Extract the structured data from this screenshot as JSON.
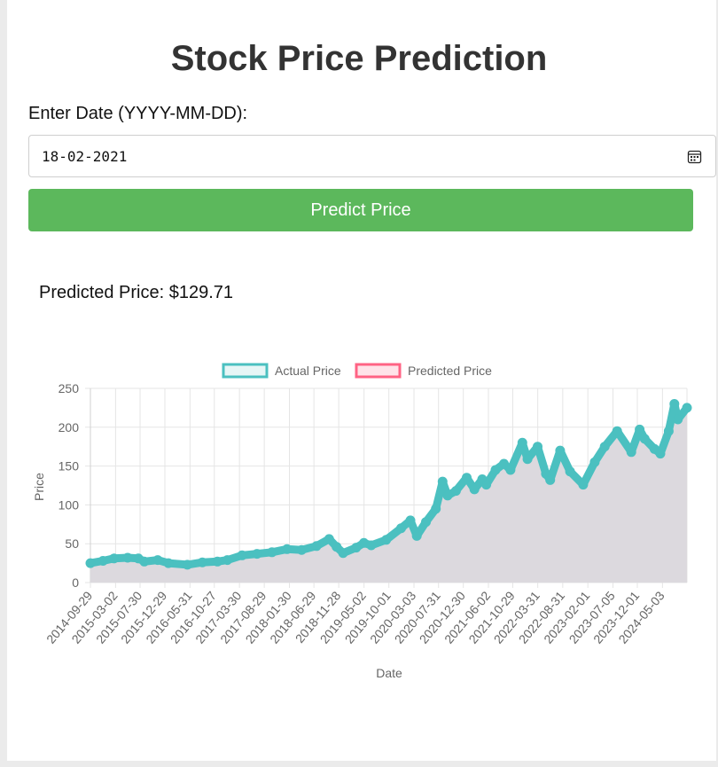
{
  "page": {
    "title": "Stock Price Prediction",
    "date_label": "Enter Date (YYYY-MM-DD):",
    "date_value": "18-02-2021",
    "button_label": "Predict Price",
    "result_text": "Predicted Price: $129.71"
  },
  "colors": {
    "actual": "#4bc0c0",
    "predicted": "#ff6384",
    "fill": "#dcd9de",
    "button": "#5cb85c"
  },
  "icons": {
    "date_picker": "calendar-icon"
  },
  "chart_data": {
    "type": "line",
    "xlabel": "Date",
    "ylabel": "Price",
    "ylim": [
      0,
      250
    ],
    "yticks": [
      0,
      50,
      100,
      150,
      200,
      250
    ],
    "x_tick_labels": [
      "2014-09-29",
      "2015-03-02",
      "2015-07-30",
      "2015-12-29",
      "2016-05-31",
      "2016-10-27",
      "2017-03-30",
      "2017-08-29",
      "2018-01-30",
      "2018-06-29",
      "2018-11-28",
      "2019-05-02",
      "2019-10-01",
      "2020-03-03",
      "2020-07-31",
      "2020-12-30",
      "2021-06-02",
      "2021-10-29",
      "2022-03-31",
      "2022-08-31",
      "2023-02-01",
      "2023-07-05",
      "2023-12-01",
      "2024-05-03"
    ],
    "x_range": [
      "2014-09-29",
      "2024-09-30"
    ],
    "grid": true,
    "legend_position": "top",
    "series": [
      {
        "name": "Actual Price",
        "color": "#4bc0c0",
        "points": [
          [
            "2014-09-29",
            25
          ],
          [
            "2014-12-15",
            28
          ],
          [
            "2015-02-20",
            31
          ],
          [
            "2015-05-15",
            32
          ],
          [
            "2015-07-20",
            31
          ],
          [
            "2015-08-25",
            27
          ],
          [
            "2015-11-15",
            29
          ],
          [
            "2016-01-20",
            25
          ],
          [
            "2016-05-15",
            23
          ],
          [
            "2016-08-15",
            26
          ],
          [
            "2016-11-15",
            27
          ],
          [
            "2017-01-15",
            29
          ],
          [
            "2017-04-15",
            35
          ],
          [
            "2017-07-15",
            37
          ],
          [
            "2017-10-15",
            39
          ],
          [
            "2018-01-15",
            43
          ],
          [
            "2018-04-15",
            42
          ],
          [
            "2018-07-15",
            47
          ],
          [
            "2018-09-30",
            56
          ],
          [
            "2018-11-15",
            46
          ],
          [
            "2018-12-25",
            38
          ],
          [
            "2019-03-15",
            45
          ],
          [
            "2019-05-01",
            51
          ],
          [
            "2019-06-15",
            48
          ],
          [
            "2019-09-15",
            55
          ],
          [
            "2019-12-15",
            70
          ],
          [
            "2020-02-10",
            80
          ],
          [
            "2020-03-20",
            60
          ],
          [
            "2020-05-15",
            78
          ],
          [
            "2020-07-15",
            95
          ],
          [
            "2020-08-25",
            130
          ],
          [
            "2020-09-25",
            112
          ],
          [
            "2020-11-15",
            118
          ],
          [
            "2021-01-20",
            135
          ],
          [
            "2021-03-08",
            120
          ],
          [
            "2021-04-25",
            133
          ],
          [
            "2021-05-20",
            126
          ],
          [
            "2021-07-15",
            145
          ],
          [
            "2021-09-05",
            153
          ],
          [
            "2021-10-15",
            145
          ],
          [
            "2021-12-27",
            180
          ],
          [
            "2022-01-27",
            159
          ],
          [
            "2022-03-30",
            175
          ],
          [
            "2022-05-20",
            140
          ],
          [
            "2022-06-15",
            132
          ],
          [
            "2022-08-15",
            170
          ],
          [
            "2022-10-15",
            143
          ],
          [
            "2023-01-03",
            126
          ],
          [
            "2023-03-15",
            155
          ],
          [
            "2023-05-15",
            175
          ],
          [
            "2023-07-30",
            195
          ],
          [
            "2023-10-25",
            168
          ],
          [
            "2023-12-15",
            197
          ],
          [
            "2024-01-15",
            185
          ],
          [
            "2024-03-15",
            172
          ],
          [
            "2024-04-20",
            166
          ],
          [
            "2024-06-10",
            195
          ],
          [
            "2024-07-15",
            230
          ],
          [
            "2024-08-05",
            210
          ],
          [
            "2024-09-30",
            225
          ]
        ]
      },
      {
        "name": "Predicted Price",
        "color": "#ff6384"
      }
    ]
  }
}
